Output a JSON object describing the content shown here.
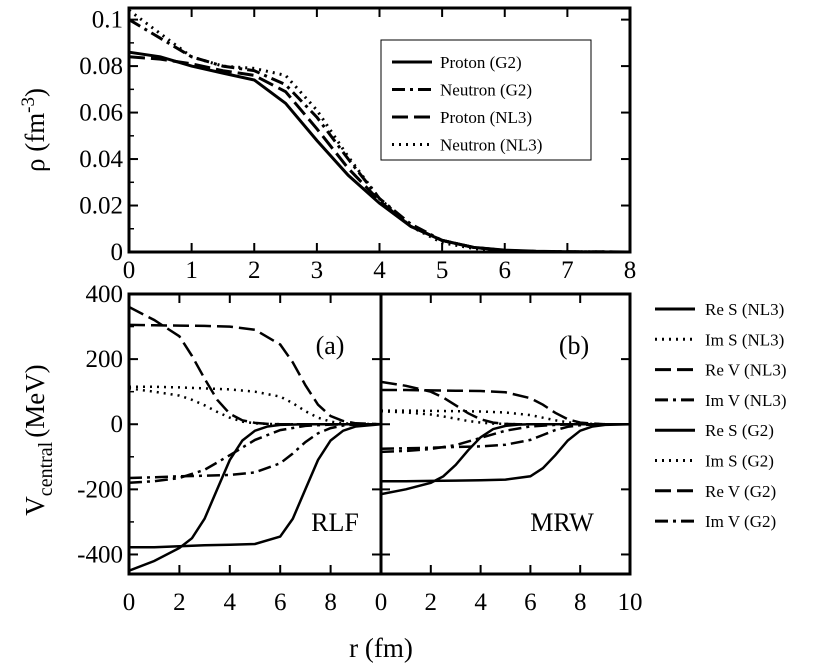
{
  "chart_data": [
    {
      "type": "line",
      "panel": "density",
      "ylabel": "ρ (fm-3)",
      "ylabel_main": "ρ (fm",
      "ylabel_sup": "-3",
      "ylabel_close": ")",
      "xlim": [
        0,
        8
      ],
      "ylim": [
        0,
        0.105
      ],
      "xticks": [
        0,
        1,
        2,
        3,
        4,
        5,
        6,
        7,
        8
      ],
      "yticks": [
        0,
        0.02,
        0.04,
        0.06,
        0.08,
        0.1
      ],
      "ytick_labels": [
        "0",
        "0.02",
        "0.04",
        "0.06",
        "0.08",
        "0.1"
      ],
      "legend_position": "top-right",
      "series": [
        {
          "name": "Proton (G2)",
          "dash": "solid",
          "width": 3,
          "x": [
            0,
            0.5,
            1,
            1.5,
            2,
            2.5,
            3,
            3.5,
            4,
            4.5,
            5,
            5.5,
            6,
            6.5,
            7,
            7.5,
            8
          ],
          "y": [
            0.086,
            0.084,
            0.08,
            0.077,
            0.074,
            0.064,
            0.048,
            0.033,
            0.021,
            0.011,
            0.005,
            0.002,
            0.0008,
            0.0003,
            0.0001,
            3e-05,
            0
          ]
        },
        {
          "name": "Neutron (G2)",
          "dash": "dashdot",
          "width": 3,
          "x": [
            0,
            0.5,
            1,
            1.5,
            2,
            2.5,
            3,
            3.5,
            4,
            4.5,
            5,
            5.5,
            6,
            6.5,
            7,
            7.5,
            8
          ],
          "y": [
            0.1,
            0.092,
            0.084,
            0.08,
            0.078,
            0.072,
            0.058,
            0.04,
            0.023,
            0.012,
            0.005,
            0.002,
            0.0007,
            0.0002,
            0.0001,
            3e-05,
            0
          ]
        },
        {
          "name": "Proton (NL3)",
          "dash": "longdash",
          "width": 3,
          "x": [
            0,
            0.5,
            1,
            1.5,
            2,
            2.5,
            3,
            3.5,
            4,
            4.5,
            5,
            5.5,
            6,
            6.5,
            7,
            7.5,
            8
          ],
          "y": [
            0.084,
            0.083,
            0.081,
            0.078,
            0.076,
            0.069,
            0.053,
            0.036,
            0.022,
            0.011,
            0.005,
            0.002,
            0.0007,
            0.0002,
            0.0001,
            3e-05,
            0
          ]
        },
        {
          "name": "Neutron (NL3)",
          "dash": "dotted",
          "width": 3,
          "x": [
            0,
            0.5,
            1,
            1.5,
            2,
            2.5,
            3,
            3.5,
            4,
            4.5,
            5,
            5.5,
            6,
            6.5,
            7,
            7.5,
            8
          ],
          "y": [
            0.104,
            0.094,
            0.084,
            0.08,
            0.079,
            0.076,
            0.061,
            0.041,
            0.023,
            0.011,
            0.004,
            0.0015,
            0.0005,
            0.0002,
            0.0001,
            3e-05,
            0
          ]
        }
      ]
    },
    {
      "type": "line",
      "panel": "potential-a",
      "panel_label": "(a)",
      "annotation": "RLF",
      "ylabel": "Vcentral (MeV)",
      "ylabel_main": "V",
      "ylabel_sub": "central",
      "ylabel_rest": "(MeV)",
      "xlim": [
        0,
        10
      ],
      "ylim": [
        -460,
        400
      ],
      "xticks": [
        0,
        2,
        4,
        6,
        8
      ],
      "yticks": [
        -400,
        -200,
        0,
        200,
        400
      ],
      "series": [
        {
          "name": "Re S (NL3)",
          "dash": "solid",
          "width": 2.5,
          "x": [
            0,
            1,
            2,
            3,
            4,
            5,
            6,
            6.5,
            7,
            7.5,
            8,
            8.5,
            9,
            10
          ],
          "y": [
            -378,
            -378,
            -375,
            -372,
            -370,
            -368,
            -345,
            -290,
            -200,
            -110,
            -50,
            -20,
            -7,
            0
          ]
        },
        {
          "name": "Im S (NL3)",
          "dash": "dotted",
          "width": 2.5,
          "x": [
            0,
            1,
            2,
            3,
            4,
            5,
            6,
            6.5,
            7,
            7.5,
            8,
            8.5,
            9,
            10
          ],
          "y": [
            115,
            115,
            113,
            110,
            107,
            100,
            85,
            65,
            40,
            20,
            8,
            3,
            1,
            0
          ]
        },
        {
          "name": "Re V (NL3)",
          "dash": "longdash",
          "width": 2.5,
          "x": [
            0,
            1,
            2,
            3,
            4,
            5,
            6,
            6.5,
            7,
            7.5,
            8,
            8.5,
            9,
            10
          ],
          "y": [
            305,
            304,
            303,
            302,
            300,
            290,
            245,
            190,
            120,
            60,
            25,
            10,
            3,
            0
          ]
        },
        {
          "name": "Im V (NL3)",
          "dash": "dashdot",
          "width": 2.5,
          "x": [
            0,
            1,
            2,
            3,
            4,
            5,
            6,
            6.5,
            7,
            7.5,
            8,
            8.5,
            9,
            10
          ],
          "y": [
            -165,
            -163,
            -160,
            -158,
            -156,
            -148,
            -120,
            -90,
            -55,
            -28,
            -12,
            -4,
            -1,
            0
          ]
        },
        {
          "name": "Re S (G2)",
          "dash": "solid",
          "width": 2.5,
          "x": [
            0,
            1,
            2,
            2.5,
            3,
            3.5,
            4,
            4.5,
            5,
            5.5,
            6,
            7,
            8,
            10
          ],
          "y": [
            -450,
            -420,
            -380,
            -350,
            -290,
            -200,
            -110,
            -50,
            -20,
            -7,
            -2,
            0,
            0,
            0
          ]
        },
        {
          "name": "Im S (G2)",
          "dash": "dotted",
          "width": 2.5,
          "x": [
            0,
            1,
            2,
            2.5,
            3,
            3.5,
            4,
            4.5,
            5,
            5.5,
            6,
            7,
            8,
            10
          ],
          "y": [
            110,
            100,
            88,
            75,
            58,
            38,
            20,
            8,
            3,
            1,
            0,
            0,
            0,
            0
          ]
        },
        {
          "name": "Re V (G2)",
          "dash": "longdash",
          "width": 2.5,
          "x": [
            0,
            1,
            2,
            2.5,
            3,
            3.5,
            4,
            4.5,
            5,
            5.5,
            6,
            7,
            8,
            10
          ],
          "y": [
            360,
            320,
            270,
            210,
            140,
            75,
            32,
            12,
            4,
            1,
            0,
            0,
            0,
            0
          ]
        },
        {
          "name": "Im V (G2)",
          "dash": "dashdot",
          "width": 2.5,
          "x": [
            0,
            1,
            2,
            3,
            4,
            5,
            6,
            7,
            8,
            9,
            10
          ],
          "y": [
            -180,
            -175,
            -165,
            -140,
            -95,
            -48,
            -18,
            -5,
            -1,
            0,
            0
          ]
        }
      ]
    },
    {
      "type": "line",
      "panel": "potential-b",
      "panel_label": "(b)",
      "annotation": "MRW",
      "xlim": [
        0,
        10
      ],
      "ylim": [
        -460,
        400
      ],
      "xticks": [
        0,
        2,
        4,
        6,
        8,
        10
      ],
      "series": [
        {
          "name": "Re S (NL3)",
          "dash": "solid",
          "width": 2.5,
          "x": [
            0,
            1,
            2,
            3,
            4,
            5,
            6,
            6.5,
            7,
            7.5,
            8,
            8.5,
            9,
            10
          ],
          "y": [
            -175,
            -175,
            -174,
            -173,
            -172,
            -170,
            -160,
            -135,
            -95,
            -50,
            -20,
            -7,
            -2,
            0
          ]
        },
        {
          "name": "Im S (NL3)",
          "dash": "dotted",
          "width": 2.5,
          "x": [
            0,
            1,
            2,
            3,
            4,
            5,
            6,
            6.5,
            7,
            7.5,
            8,
            8.5,
            9,
            10
          ],
          "y": [
            42,
            42,
            41,
            40,
            39,
            36,
            28,
            20,
            12,
            6,
            2,
            1,
            0,
            0
          ]
        },
        {
          "name": "Re V (NL3)",
          "dash": "longdash",
          "width": 2.5,
          "x": [
            0,
            1,
            2,
            3,
            4,
            5,
            6,
            6.5,
            7,
            7.5,
            8,
            8.5,
            9,
            10
          ],
          "y": [
            105,
            105,
            104,
            103,
            102,
            98,
            80,
            60,
            35,
            15,
            5,
            2,
            0,
            0
          ]
        },
        {
          "name": "Im V (NL3)",
          "dash": "dashdot",
          "width": 2.5,
          "x": [
            0,
            1,
            2,
            3,
            4,
            5,
            6,
            6.5,
            7,
            7.5,
            8,
            8.5,
            9,
            10
          ],
          "y": [
            -75,
            -74,
            -72,
            -70,
            -68,
            -63,
            -48,
            -33,
            -18,
            -8,
            -3,
            -1,
            0,
            0
          ]
        },
        {
          "name": "Re S (G2)",
          "dash": "solid",
          "width": 2.5,
          "x": [
            0,
            1,
            2,
            2.5,
            3,
            3.5,
            4,
            4.5,
            5,
            5.5,
            6,
            7,
            8,
            10
          ],
          "y": [
            -215,
            -200,
            -180,
            -160,
            -125,
            -80,
            -40,
            -15,
            -5,
            -1,
            0,
            0,
            0,
            0
          ]
        },
        {
          "name": "Im S (G2)",
          "dash": "dotted",
          "width": 2.5,
          "x": [
            0,
            1,
            2,
            2.5,
            3,
            3.5,
            4,
            4.5,
            5,
            5.5,
            6,
            7,
            8,
            10
          ],
          "y": [
            40,
            36,
            30,
            24,
            17,
            10,
            5,
            2,
            1,
            0,
            0,
            0,
            0,
            0
          ]
        },
        {
          "name": "Re V (G2)",
          "dash": "longdash",
          "width": 2.5,
          "x": [
            0,
            1,
            2,
            2.5,
            3,
            3.5,
            4,
            4.5,
            5,
            5.5,
            6,
            7,
            8,
            10
          ],
          "y": [
            130,
            118,
            100,
            82,
            58,
            34,
            15,
            5,
            1,
            0,
            0,
            0,
            0,
            0
          ]
        },
        {
          "name": "Im V (G2)",
          "dash": "dashdot",
          "width": 2.5,
          "x": [
            0,
            1,
            2,
            3,
            4,
            5,
            6,
            7,
            8,
            9,
            10
          ],
          "y": [
            -85,
            -82,
            -76,
            -64,
            -42,
            -20,
            -7,
            -2,
            0,
            0,
            0
          ]
        }
      ]
    }
  ],
  "xlabel": "r (fm)",
  "bottom_legend": {
    "position": "right",
    "entries": [
      {
        "label": "Re S (NL3)",
        "dash": "solid"
      },
      {
        "label": "Im S (NL3)",
        "dash": "dotted"
      },
      {
        "label": "Re V (NL3)",
        "dash": "longdash"
      },
      {
        "label": "Im V (NL3)",
        "dash": "dashdot"
      },
      {
        "label": "Re S (G2)",
        "dash": "solid"
      },
      {
        "label": "Im S (G2)",
        "dash": "dotted"
      },
      {
        "label": "Re V (G2)",
        "dash": "longdash"
      },
      {
        "label": "Im V (G2)",
        "dash": "dashdot"
      }
    ]
  }
}
